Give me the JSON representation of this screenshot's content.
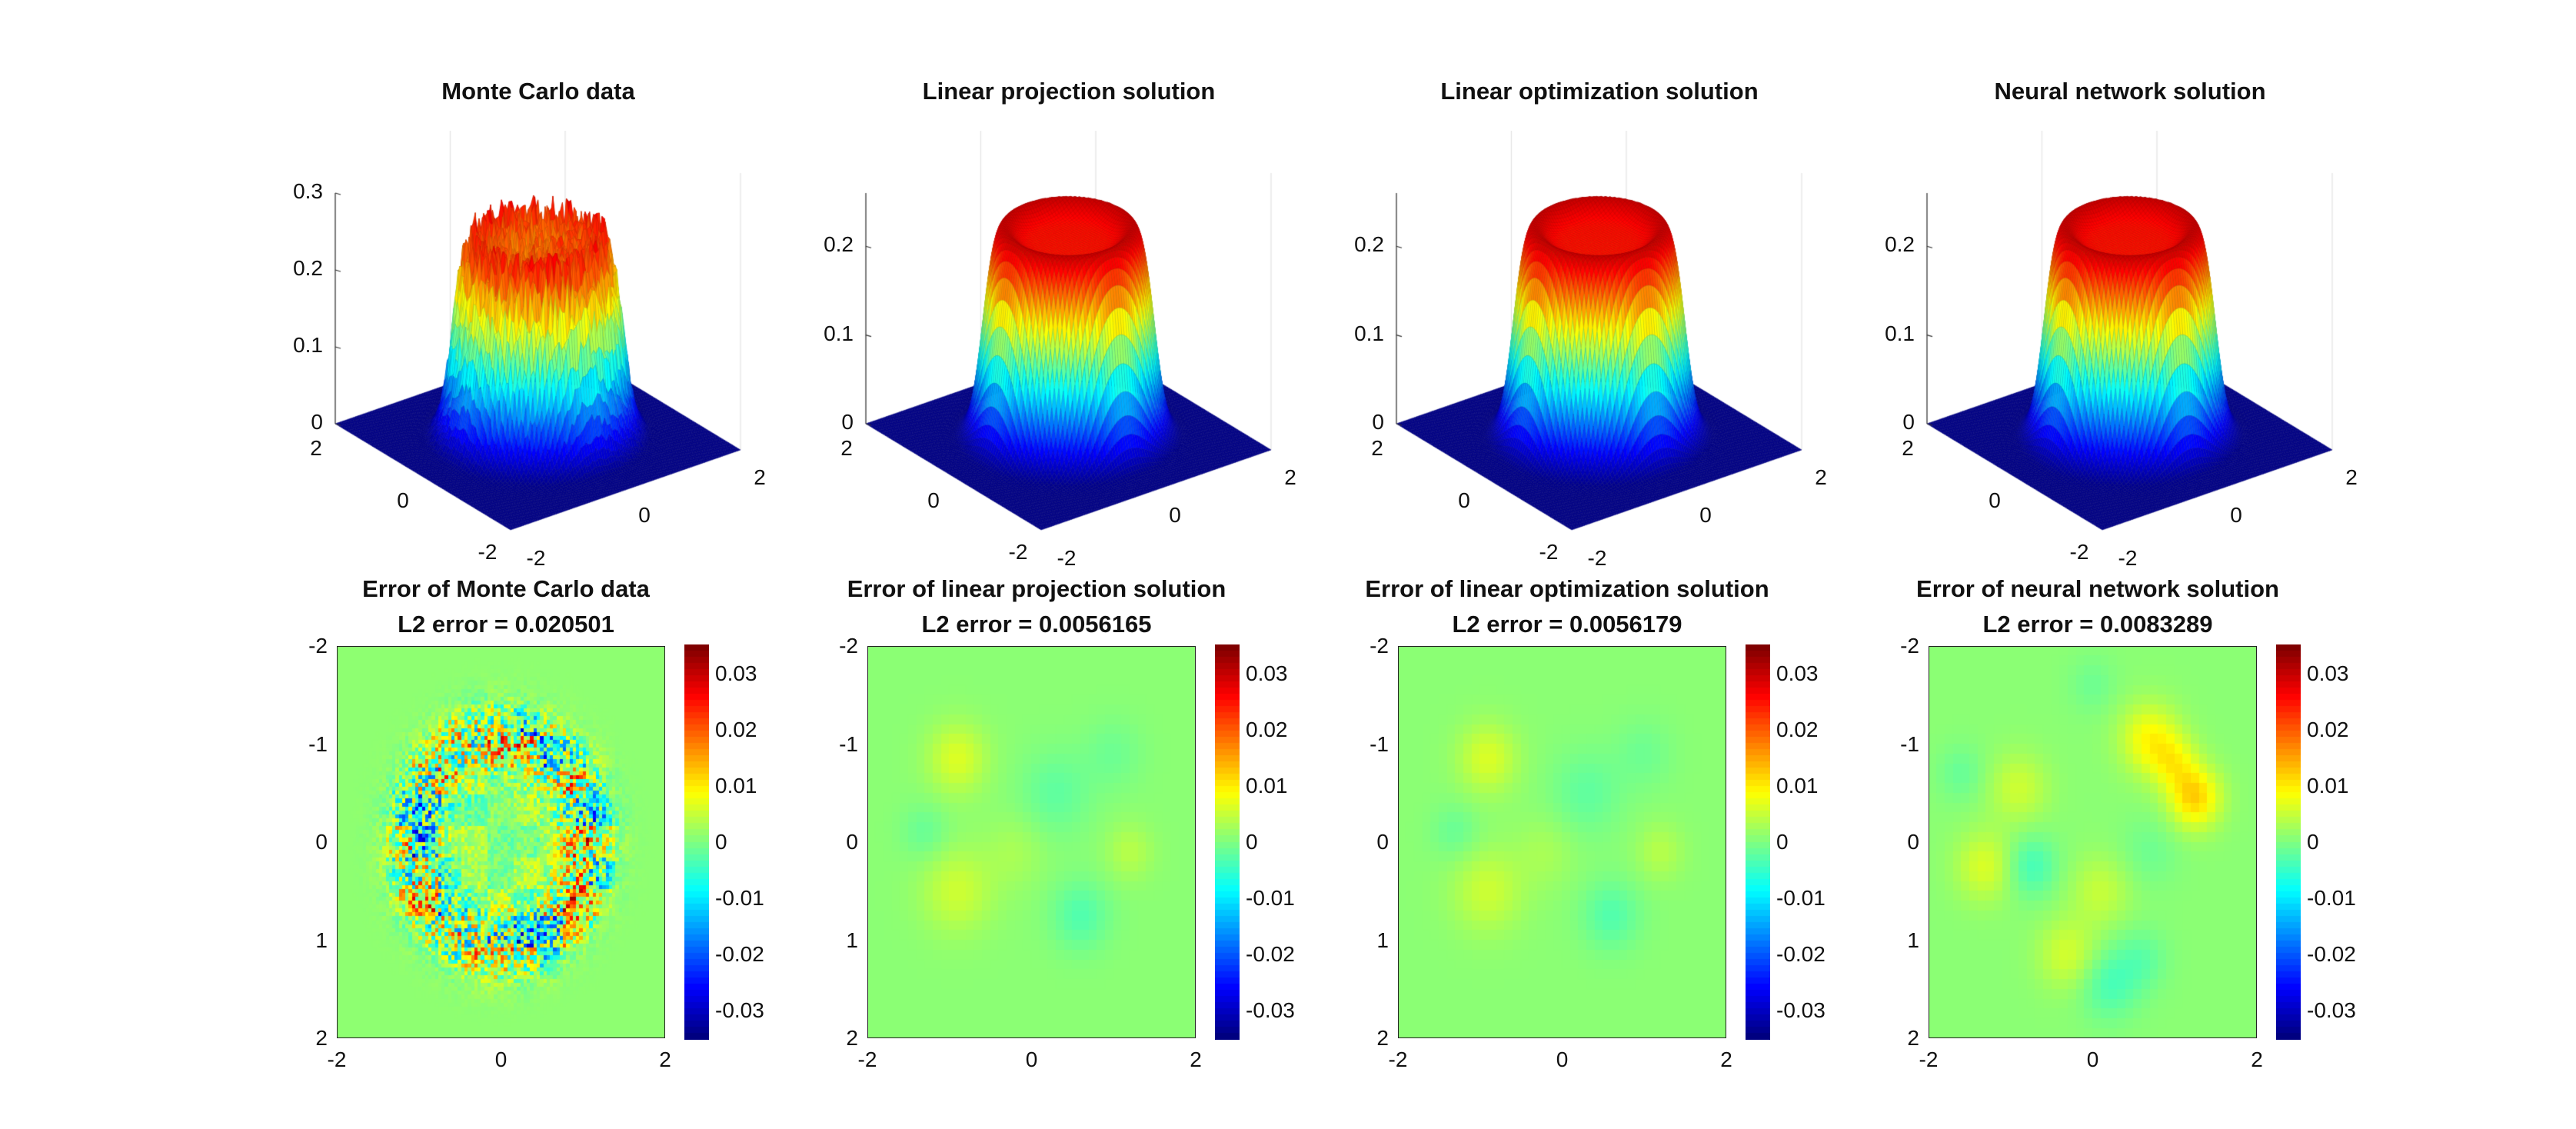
{
  "chart_data": [
    {
      "type": "surface",
      "title": "Monte Carlo data",
      "xlim": [
        -2,
        2
      ],
      "ylim": [
        -2,
        2
      ],
      "zlim": [
        0,
        0.3
      ],
      "xticks": [
        "-2",
        "0",
        "2"
      ],
      "yticks": [
        "-2",
        "0",
        "2"
      ],
      "zticks": [
        "0",
        "0.1",
        "0.2",
        "0.3"
      ],
      "colormap": "jet",
      "plateau_height": 0.26,
      "plateau_radius": 1.2,
      "noisy": true
    },
    {
      "type": "surface",
      "title": "Linear projection solution",
      "xlim": [
        -2,
        2
      ],
      "ylim": [
        -2,
        2
      ],
      "zlim": [
        0,
        0.26
      ],
      "xticks": [
        "-2",
        "0",
        "2"
      ],
      "yticks": [
        "-2",
        "0",
        "2"
      ],
      "zticks": [
        "0",
        "0.1",
        "0.2"
      ],
      "colormap": "jet",
      "plateau_height": 0.25,
      "plateau_radius": 1.2,
      "noisy": false
    },
    {
      "type": "surface",
      "title": "Linear optimization solution",
      "xlim": [
        -2,
        2
      ],
      "ylim": [
        -2,
        2
      ],
      "zlim": [
        0,
        0.26
      ],
      "xticks": [
        "-2",
        "0",
        "2"
      ],
      "yticks": [
        "-2",
        "0",
        "2"
      ],
      "zticks": [
        "0",
        "0.1",
        "0.2"
      ],
      "colormap": "jet",
      "plateau_height": 0.25,
      "plateau_radius": 1.2,
      "noisy": false
    },
    {
      "type": "surface",
      "title": "Neural network solution",
      "xlim": [
        -2,
        2
      ],
      "ylim": [
        -2,
        2
      ],
      "zlim": [
        0,
        0.26
      ],
      "xticks": [
        "-2",
        "0",
        "2"
      ],
      "yticks": [
        "-2",
        "0",
        "2"
      ],
      "zticks": [
        "0",
        "0.1",
        "0.2"
      ],
      "colormap": "jet",
      "plateau_height": 0.25,
      "plateau_radius": 1.2,
      "noisy": false
    },
    {
      "type": "heatmap",
      "title": [
        "Error of Monte Carlo data",
        "L2 error = 0.020501"
      ],
      "xlim": [
        -2,
        2
      ],
      "ylim": [
        -2,
        2
      ],
      "y_reversed": true,
      "xticks": [
        "-2",
        "0",
        "2"
      ],
      "yticks": [
        "-2",
        "-1",
        "0",
        "1",
        "2"
      ],
      "clim": [
        -0.035,
        0.035
      ],
      "colorbar_ticks": [
        "0.03",
        "0.02",
        "0.01",
        "0",
        "-0.01",
        "-0.02",
        "-0.03"
      ],
      "colormap": "jet"
    },
    {
      "type": "heatmap",
      "title": [
        "Error of linear projection solution",
        "L2 error = 0.0056165"
      ],
      "xlim": [
        -2,
        2
      ],
      "ylim": [
        -2,
        2
      ],
      "y_reversed": true,
      "xticks": [
        "-2",
        "0",
        "2"
      ],
      "yticks": [
        "-2",
        "-1",
        "0",
        "1",
        "2"
      ],
      "clim": [
        -0.035,
        0.035
      ],
      "colorbar_ticks": [
        "0.03",
        "0.02",
        "0.01",
        "0",
        "-0.01",
        "-0.02",
        "-0.03"
      ],
      "colormap": "jet"
    },
    {
      "type": "heatmap",
      "title": [
        "Error of linear optimization solution",
        "L2 error = 0.0056179"
      ],
      "xlim": [
        -2,
        2
      ],
      "ylim": [
        -2,
        2
      ],
      "y_reversed": true,
      "xticks": [
        "-2",
        "0",
        "2"
      ],
      "yticks": [
        "-2",
        "-1",
        "0",
        "1",
        "2"
      ],
      "clim": [
        -0.035,
        0.035
      ],
      "colorbar_ticks": [
        "0.03",
        "0.02",
        "0.01",
        "0",
        "-0.01",
        "-0.02",
        "-0.03"
      ],
      "colormap": "jet"
    },
    {
      "type": "heatmap",
      "title": [
        "Error of neural network solution",
        "L2 error = 0.0083289"
      ],
      "xlim": [
        -2,
        2
      ],
      "ylim": [
        -2,
        2
      ],
      "y_reversed": true,
      "xticks": [
        "-2",
        "0",
        "2"
      ],
      "yticks": [
        "-2",
        "-1",
        "0",
        "1",
        "2"
      ],
      "clim": [
        -0.035,
        0.035
      ],
      "colorbar_ticks": [
        "0.03",
        "0.02",
        "0.01",
        "0",
        "-0.01",
        "-0.02",
        "-0.03"
      ],
      "colormap": "jet"
    }
  ]
}
